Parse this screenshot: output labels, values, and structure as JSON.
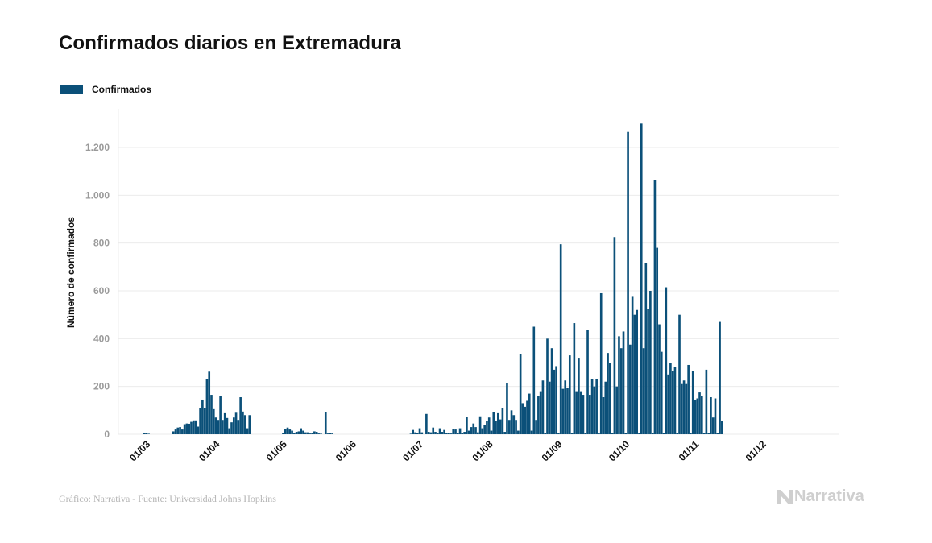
{
  "chart_data": {
    "type": "bar",
    "title": "Confirmados diarios en Extremadura",
    "xlabel": "",
    "ylabel": "Número de confirmados",
    "ylim": [
      0,
      1360
    ],
    "yticks": [
      0,
      200,
      400,
      600,
      800,
      1000,
      1200
    ],
    "ytick_labels": [
      "0",
      "200",
      "400",
      "600",
      "800",
      "1.000",
      "1.200"
    ],
    "xticks": [
      {
        "day": 4,
        "label": "01/03"
      },
      {
        "day": 35,
        "label": "01/04"
      },
      {
        "day": 65,
        "label": "01/05"
      },
      {
        "day": 96,
        "label": "01/06"
      },
      {
        "day": 126,
        "label": "01/07"
      },
      {
        "day": 157,
        "label": "01/08"
      },
      {
        "day": 188,
        "label": "01/09"
      },
      {
        "day": 218,
        "label": "01/10"
      },
      {
        "day": 249,
        "label": "01/11"
      },
      {
        "day": 279,
        "label": "01/12"
      }
    ],
    "x_start_date": "26/02",
    "grid": true,
    "legend_position": "top-left",
    "series": [
      {
        "name": "Confirmados",
        "color": "#0b5079",
        "values": [
          0,
          6,
          4,
          2,
          0,
          0,
          0,
          0,
          0,
          0,
          0,
          0,
          0,
          0,
          12,
          20,
          28,
          30,
          20,
          42,
          45,
          44,
          52,
          58,
          58,
          32,
          110,
          145,
          110,
          230,
          262,
          165,
          105,
          70,
          60,
          160,
          60,
          88,
          68,
          25,
          50,
          70,
          90,
          60,
          155,
          95,
          80,
          25,
          80,
          0,
          0,
          0,
          0,
          0,
          0,
          0,
          0,
          0,
          0,
          0,
          0,
          0,
          0,
          5,
          22,
          28,
          20,
          15,
          5,
          10,
          12,
          25,
          15,
          8,
          8,
          3,
          5,
          12,
          10,
          3,
          2,
          0,
          92,
          3,
          5,
          3,
          0,
          0,
          0,
          0,
          0,
          0,
          0,
          0,
          0,
          0,
          0,
          0,
          0,
          0,
          0,
          0,
          0,
          0,
          0,
          0,
          0,
          0,
          0,
          0,
          0,
          0,
          0,
          0,
          0,
          0,
          0,
          0,
          0,
          0,
          2,
          18,
          8,
          5,
          25,
          8,
          0,
          85,
          10,
          8,
          28,
          10,
          5,
          25,
          10,
          18,
          5,
          5,
          3,
          22,
          20,
          5,
          25,
          5,
          10,
          72,
          15,
          30,
          45,
          30,
          8,
          75,
          25,
          40,
          55,
          70,
          15,
          92,
          55,
          88,
          62,
          110,
          10,
          215,
          60,
          100,
          80,
          60,
          15,
          335,
          130,
          115,
          140,
          170,
          15,
          450,
          60,
          160,
          180,
          225,
          5,
          400,
          220,
          360,
          270,
          285,
          5,
          795,
          190,
          225,
          195,
          330,
          5,
          465,
          180,
          320,
          180,
          165,
          5,
          435,
          165,
          230,
          200,
          230,
          5,
          590,
          155,
          220,
          340,
          300,
          5,
          825,
          200,
          410,
          360,
          430,
          5,
          1265,
          375,
          575,
          500,
          520,
          5,
          1300,
          360,
          715,
          525,
          600,
          5,
          1065,
          780,
          460,
          345,
          5,
          615,
          250,
          300,
          265,
          280,
          5,
          500,
          210,
          225,
          210,
          290,
          5,
          265,
          145,
          150,
          175,
          160,
          5,
          270,
          5,
          155,
          70,
          150,
          5,
          470,
          55
        ]
      }
    ]
  },
  "legend": {
    "label": "Confirmados"
  },
  "footer": {
    "source": "Gráfico: Narrativa - Fuente: Universidad Johns Hopkins",
    "brand": "Narrativa"
  }
}
